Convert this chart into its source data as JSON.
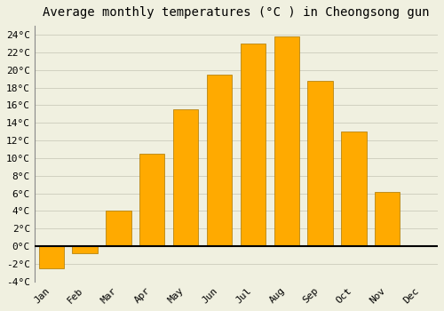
{
  "title": "Average monthly temperatures (°C ) in Cheongsong gun",
  "months": [
    "Jan",
    "Feb",
    "Mar",
    "Apr",
    "May",
    "Jun",
    "Jul",
    "Aug",
    "Sep",
    "Oct",
    "Nov",
    "Dec"
  ],
  "values": [
    -2.5,
    -0.8,
    4.0,
    10.5,
    15.5,
    19.5,
    23.0,
    23.8,
    18.8,
    13.0,
    6.2,
    0.0
  ],
  "bar_color": "#FFAA00",
  "bar_edge_color": "#AA7700",
  "background_color": "#F0F0E0",
  "grid_color": "#CCCCBB",
  "ylim": [
    -4,
    25
  ],
  "yticks": [
    -4,
    -2,
    0,
    2,
    4,
    6,
    8,
    10,
    12,
    14,
    16,
    18,
    20,
    22,
    24
  ],
  "title_fontsize": 10,
  "tick_fontsize": 8,
  "bar_width": 0.75
}
